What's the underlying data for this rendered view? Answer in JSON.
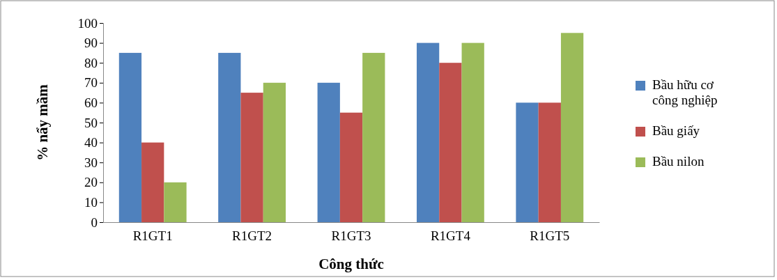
{
  "chart_data": {
    "type": "bar",
    "xlabel": "Công thức",
    "ylabel": "% nẩy mầm",
    "categories": [
      "R1GT1",
      "R1GT2",
      "R1GT3",
      "R1GT4",
      "R1GT5"
    ],
    "series": [
      {
        "name": "Bầu hữu cơ công nghiệp",
        "color": "#4f81bd",
        "values": [
          85,
          85,
          70,
          90,
          60
        ]
      },
      {
        "name": "Bầu giấy",
        "color": "#c0504d",
        "values": [
          40,
          65,
          55,
          80,
          60
        ]
      },
      {
        "name": "Bầu nilon",
        "color": "#9bbb59",
        "values": [
          20,
          70,
          85,
          90,
          95
        ]
      }
    ],
    "ylim": [
      0,
      100
    ],
    "yticks": [
      0,
      10,
      20,
      30,
      40,
      50,
      60,
      70,
      80,
      90,
      100
    ],
    "grid": false,
    "legend": "right"
  }
}
